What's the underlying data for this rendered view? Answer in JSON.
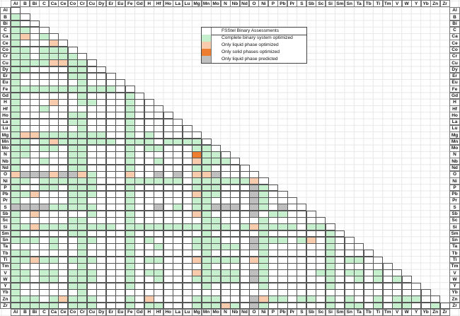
{
  "elements": [
    "Al",
    "B",
    "Bi",
    "C",
    "Ca",
    "Ce",
    "Co",
    "Cr",
    "Cu",
    "Dy",
    "Er",
    "Eu",
    "Fe",
    "Gd",
    "H",
    "Hf",
    "Ho",
    "La",
    "Lu",
    "Mg",
    "Mn",
    "Mo",
    "N",
    "Nb",
    "Nd",
    "O",
    "Ni",
    "P",
    "Pb",
    "Pr",
    "S",
    "Sb",
    "Sc",
    "Si",
    "Sm",
    "Sn",
    "Ta",
    "Tb",
    "Ti",
    "Tm",
    "V",
    "W",
    "Y",
    "Yb",
    "Zn",
    "Zr"
  ],
  "legend": {
    "title": "FSStel Binary Assessments",
    "items": [
      {
        "code": "g",
        "label": "Complete binary system optimized",
        "color": "#c6efce"
      },
      {
        "code": "o",
        "label": "Only liquid phase optimized",
        "color": "#f8cbad"
      },
      {
        "code": "d",
        "label": "Only solid phases optimized",
        "color": "#ed7d31"
      },
      {
        "code": "s",
        "label": "Only liquid phase predicted",
        "color": "#bfbfbf"
      }
    ]
  },
  "colors": {
    "g": "#c6efce",
    "o": "#f8cbad",
    "d": "#ed7d31",
    "s": "#bfbfbf",
    "w": "#ffffff"
  },
  "matrix": {
    "rows": [
      "w",
      "g w",
      "g w w",
      "g g w w",
      "g o w g w",
      "g w w w o w",
      "g g w g g g w",
      "g g w g g g g w",
      "g g g g o o g g w",
      "g g w w w w g g w w",
      "g w w w w w g g w w w",
      "g w w w w w w g w w w w",
      "ggggggggggg w w",
      "gwwwwwwgwwwwgw",
      "gwwwowwggwwwgww",
      "gwwgwwwwwwwwgww w",
      "gwwwwwggwwwwgww ww",
      "gwwwwwggwwwwgww www",
      "gwwwwwwgwwwwgww wwww",
      "goo ggggggg ww gwg wwww w",
      "ggwgoggggggwggg wgggg w",
      "ggwggwggwwwwgwg gwwwgg w",
      "ggwwwwggwwwwgww wwww dgg w",
      "gwwgwwggwwwwgww gwww oggg w",
      "gwwwwwggwwwwgww wwww gg www w",
      "osssossog wwwoww swsw oos www w",
      "ggwggggggwwwggg gggw gggggg o w",
      "gwwggwgggwwwgww wwww gggwww s g w",
      "ggowwwgggwwwgww wwww oggwww s g w w",
      "gwwwwwggwwwwgww wwww ggwwww s g ww w",
      "ssssgggggwwwgww swgw ggsssw s g wsw w",
      "gwowwwwwgwwwgww wwww ogwwww s w gg w w w",
      "gwwwwwggwwwwgww wwww wggwww w g wwwww w",
      "ggoggggggggwggg gggg ggggwg o g gggwgg w",
      "gwwwwwggwwwwgww wwww wgwwww w g wwwwww g w",
      "gggwgwwggwwwgwg wwww gggwww s g ggwgowgw w",
      "wwwwgwwgwwwwgww gwww gggggw s g wwwwwwgww w",
      "ggwwwwwgwwwwgww wwww wgwwww w g wwwwwwgwww w",
      "ggoggwgggwwwgwg gwww oggggw o g wwwwwwgwggw w",
      "gwwwwwwgwwwwgww wwww wgwwww w g wwwwwwgwwwww w",
      "ggwggwgggwwwgwg gwww oggggw s g wwwwwggwggwgw w",
      "ggwggwgggwwwgww gwww gggggw s g wwwwwwgwwgwgwg w",
      "gwwwwwggwwwwgww wwww wgwwww w g wwwwwwgwwwwwwww w",
      "gwwwwwwgwwwwwww wwww wwwwww w w wwwwwwwwwwwwwwww w",
      "gggwgogggwwwgwo wwww gggwww s o ggwggwgwgwwgwgggw w",
      "gggggwgggwwwgwg gwww gggogw s g wwwwwwgwggwgwggwwg w"
    ]
  }
}
